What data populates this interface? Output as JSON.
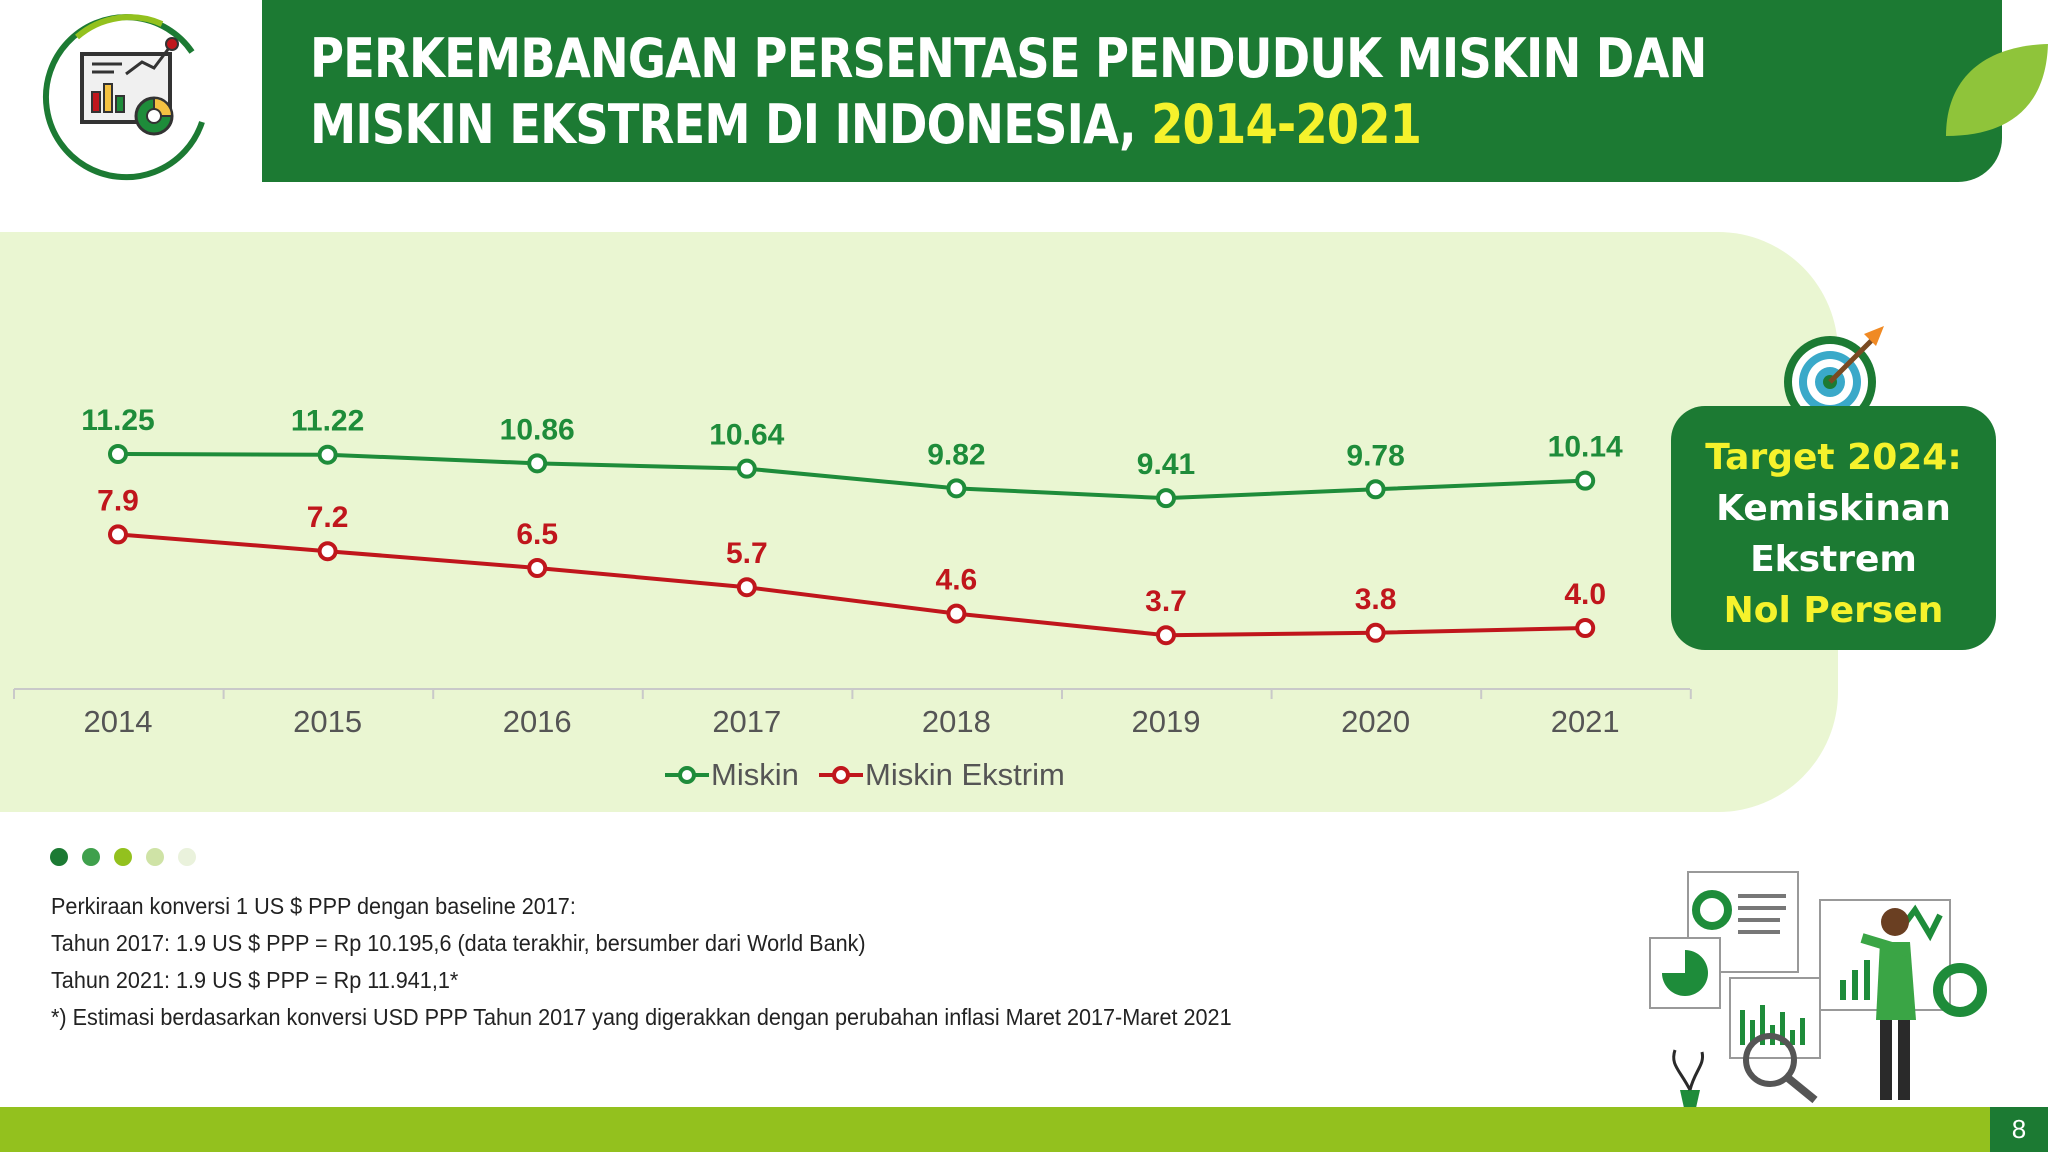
{
  "title": {
    "line1": "PERKEMBANGAN PERSENTASE PENDUDUK MISKIN DAN",
    "line2": "MISKIN EKSTREM DI INDONESIA, ",
    "years": "2014-2021"
  },
  "target": {
    "line1": "Target 2024:",
    "line2": "Kemiskinan",
    "line3": "Ekstrem",
    "line4": "Nol Persen"
  },
  "chart_data": {
    "type": "line",
    "x": [
      "2014",
      "2015",
      "2016",
      "2017",
      "2018",
      "2019",
      "2020",
      "2021"
    ],
    "series": [
      {
        "name": "Miskin",
        "color": "#1e8c3a",
        "values": [
          11.25,
          11.22,
          10.86,
          10.64,
          9.82,
          9.41,
          9.78,
          10.14
        ],
        "labels": [
          "11.25",
          "11.22",
          "10.86",
          "10.64",
          "9.82",
          "9.41",
          "9.78",
          "10.14"
        ]
      },
      {
        "name": "Miskin Ekstrim",
        "color": "#c0161c",
        "values": [
          7.9,
          7.2,
          6.5,
          5.7,
          4.6,
          3.7,
          3.8,
          4.0
        ],
        "labels": [
          "7.9",
          "7.2",
          "6.5",
          "5.7",
          "4.6",
          "3.7",
          "3.8",
          "4.0"
        ]
      }
    ],
    "legend": "bottom",
    "grid": false
  },
  "notes": [
    "Perkiraan konversi 1 US $ PPP dengan baseline 2017:",
    "Tahun 2017: 1.9 US $ PPP = Rp 10.195,6 (data terakhir, bersumber dari World Bank)",
    "Tahun 2021: 1.9 US $ PPP = Rp 11.941,1*",
    "*) Estimasi berdasarkan konversi USD PPP Tahun 2017 yang digerakkan dengan perubahan inflasi Maret 2017-Maret 2021"
  ],
  "page_number": "8",
  "icons": [
    "analytics-logo-icon",
    "leaf-icon",
    "target-dart-icon",
    "presenter-illustration"
  ],
  "colors": {
    "brand_green": "#1c7a33",
    "lime": "#93c11e",
    "panel": "#eaf6d2",
    "highlight_yellow": "#f5f22c"
  }
}
